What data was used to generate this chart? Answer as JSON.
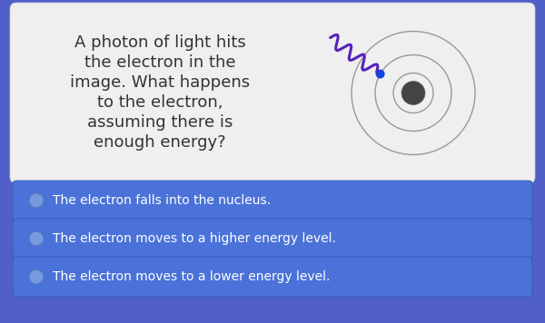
{
  "bg_color": "#5060c8",
  "question_box_color": "#efefef",
  "question_text_lines": [
    "A photon of light hits",
    "the electron in the",
    "image. What happens",
    "to the electron,",
    "assuming there is",
    "enough energy?"
  ],
  "question_text_color": "#333333",
  "question_fontsize": 13,
  "answer_box_color": "#4a72d8",
  "answer_text_color": "#ffffff",
  "answer_fontsize": 10,
  "answers": [
    "The electron falls into the nucleus.",
    "The electron moves to a higher energy level.",
    "The electron moves to a lower energy level."
  ],
  "nucleus_color": "#444444",
  "orbit_color": "#999999",
  "electron_color": "#1144dd",
  "photon_color": "#5522bb",
  "bg_gradient_left": "#6655bb",
  "bg_gradient_right": "#4466cc"
}
